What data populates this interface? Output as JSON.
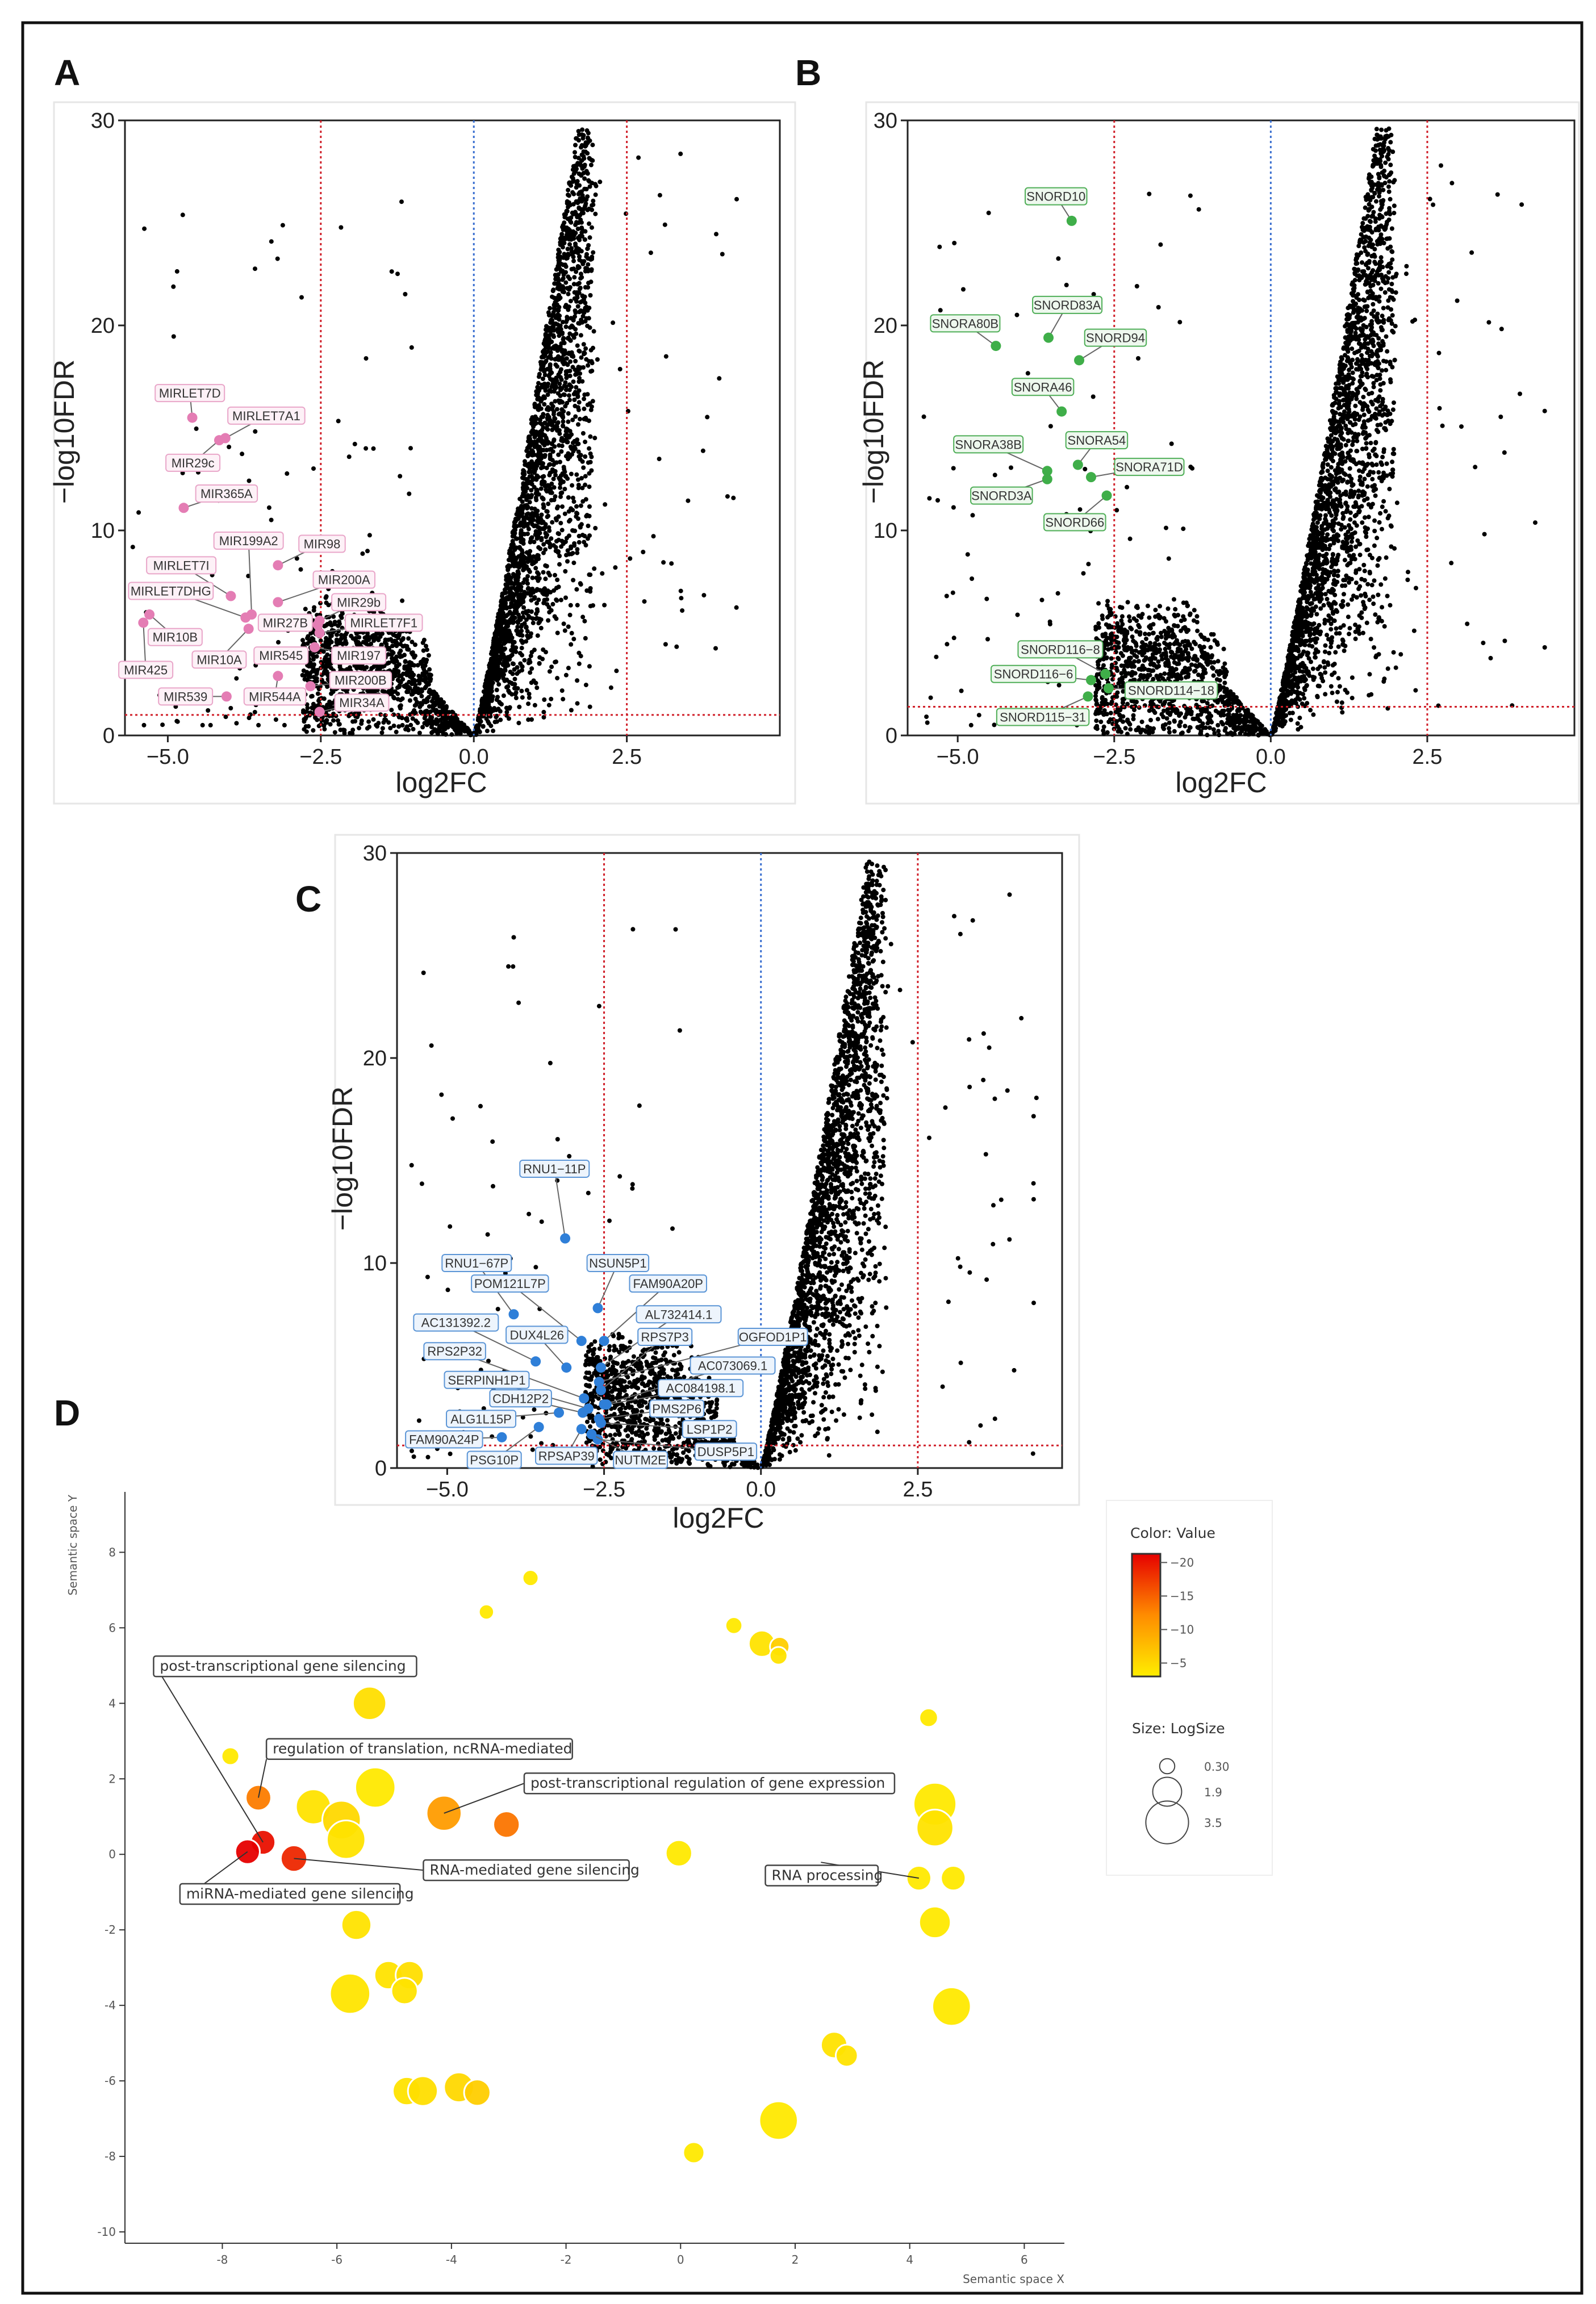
{
  "panel_letters": [
    "A",
    "B",
    "C",
    "D"
  ],
  "chart_data": [
    {
      "panel": "A",
      "type": "scatter",
      "subtype": "volcano",
      "xlabel": "log2FC",
      "ylabel": "−log10FDR",
      "xlim": [
        -5.7,
        5.0
      ],
      "ylim": [
        0,
        30
      ],
      "x_ticks": [
        -5,
        -2.5,
        0,
        2.5
      ],
      "x_tick_labels": [
        "−5.0",
        "−2.5",
        "0.0",
        "2.5"
      ],
      "y_ticks": [
        0,
        10,
        20,
        30
      ],
      "y_tick_labels": [
        "0",
        "10",
        "20",
        "30"
      ],
      "thresholds": {
        "log2fc": [
          -2.5,
          2.5
        ],
        "center": 0,
        "neg_log10_fdr": 1.0
      },
      "highlight_color": "#e47db4",
      "label_border": "#e9a6c9",
      "label_fill": "#fdf1f7",
      "highlighted": [
        {
          "label": "MIRLET7D",
          "x": -4.6,
          "y": 15.5
        },
        {
          "label": "MIRLET7A1",
          "x": -4.06,
          "y": 14.5
        },
        {
          "label": "MIR29c",
          "x": -4.16,
          "y": 14.4
        },
        {
          "label": "MIR365A",
          "x": -4.74,
          "y": 11.1
        },
        {
          "label": "MIR199A2",
          "x": -3.63,
          "y": 5.9
        },
        {
          "label": "MIR98",
          "x": -3.2,
          "y": 8.3
        },
        {
          "label": "MIRLET7I",
          "x": -3.97,
          "y": 6.8
        },
        {
          "label": "MIRLET7DHG",
          "x": -3.73,
          "y": 5.75
        },
        {
          "label": "MIR200A",
          "x": -3.2,
          "y": 6.5
        },
        {
          "label": "MIR29b",
          "x": -2.52,
          "y": 5.6
        },
        {
          "label": "MIR27B",
          "x": -2.55,
          "y": 5.4
        },
        {
          "label": "MIRLET7F1",
          "x": -2.52,
          "y": 5.0
        },
        {
          "label": "MIR10B",
          "x": -5.3,
          "y": 5.9
        },
        {
          "label": "MIR10A",
          "x": -3.68,
          "y": 5.2
        },
        {
          "label": "MIR545",
          "x": -2.98,
          "y": 4.0
        },
        {
          "label": "MIR197",
          "x": -2.6,
          "y": 4.3
        },
        {
          "label": "MIR425",
          "x": -5.4,
          "y": 5.5
        },
        {
          "label": "MIR200B",
          "x": -2.67,
          "y": 2.4
        },
        {
          "label": "MIR539",
          "x": -4.04,
          "y": 1.9
        },
        {
          "label": "MIR544A",
          "x": -3.2,
          "y": 2.9
        },
        {
          "label": "MIR34A",
          "x": -2.52,
          "y": 1.15
        }
      ]
    },
    {
      "panel": "B",
      "type": "scatter",
      "subtype": "volcano",
      "xlabel": "log2FC",
      "ylabel": "−log10FDR",
      "xlim": [
        -5.8,
        4.85
      ],
      "ylim": [
        0,
        30
      ],
      "x_ticks": [
        -5,
        -2.5,
        0,
        2.5
      ],
      "x_tick_labels": [
        "−5.0",
        "−2.5",
        "0.0",
        "2.5"
      ],
      "y_ticks": [
        0,
        10,
        20,
        30
      ],
      "y_tick_labels": [
        "0",
        "10",
        "20",
        "30"
      ],
      "thresholds": {
        "log2fc": [
          -2.5,
          2.5
        ],
        "center": 0,
        "neg_log10_fdr": 1.4
      },
      "highlight_color": "#3fae49",
      "label_border": "#4fae57",
      "label_fill": "#eef8ee",
      "highlighted": [
        {
          "label": "SNORD10",
          "x": -3.18,
          "y": 25.1
        },
        {
          "label": "SNORD83A",
          "x": -3.55,
          "y": 19.4
        },
        {
          "label": "SNORA80B",
          "x": -4.39,
          "y": 19.0
        },
        {
          "label": "SNORD94",
          "x": -3.06,
          "y": 18.3
        },
        {
          "label": "SNORA46",
          "x": -3.34,
          "y": 15.8
        },
        {
          "label": "SNORA38B",
          "x": -3.57,
          "y": 12.9
        },
        {
          "label": "SNORA54",
          "x": -3.08,
          "y": 13.2
        },
        {
          "label": "SNORA71D",
          "x": -2.87,
          "y": 12.6
        },
        {
          "label": "SNORD3A",
          "x": -3.57,
          "y": 12.5
        },
        {
          "label": "SNORD66",
          "x": -2.62,
          "y": 11.7
        },
        {
          "label": "SNORD116−8",
          "x": -2.64,
          "y": 3.0
        },
        {
          "label": "SNORD116−6",
          "x": -2.87,
          "y": 2.7
        },
        {
          "label": "SNORD114−18",
          "x": -2.59,
          "y": 2.3
        },
        {
          "label": "SNORD115−31",
          "x": -2.92,
          "y": 1.9
        }
      ]
    },
    {
      "panel": "C",
      "type": "scatter",
      "subtype": "volcano",
      "xlabel": "log2FC",
      "ylabel": "−log10FDR",
      "xlim": [
        -5.8,
        4.8
      ],
      "ylim": [
        0,
        30
      ],
      "x_ticks": [
        -5,
        -2.5,
        0,
        2.5
      ],
      "x_tick_labels": [
        "−5.0",
        "−2.5",
        "0.0",
        "2.5"
      ],
      "y_ticks": [
        0,
        10,
        20,
        30
      ],
      "y_tick_labels": [
        "0",
        "10",
        "20",
        "30"
      ],
      "thresholds": {
        "log2fc": [
          -2.5,
          2.5
        ],
        "center": 0,
        "neg_log10_fdr": 1.1
      },
      "highlight_color": "#2f7fd8",
      "label_border": "#5b95d6",
      "label_fill": "#edf4fc",
      "highlighted": [
        {
          "label": "RNU1−11P",
          "x": -3.12,
          "y": 11.2
        },
        {
          "label": "RNU1−67P",
          "x": -3.94,
          "y": 7.5
        },
        {
          "label": "NSUN5P1",
          "x": -2.6,
          "y": 7.8
        },
        {
          "label": "POM121L7P",
          "x": -2.86,
          "y": 6.2
        },
        {
          "label": "FAM90A20P",
          "x": -2.5,
          "y": 6.2
        },
        {
          "label": "AL732414.1",
          "x": -2.55,
          "y": 4.9
        },
        {
          "label": "RPS7P3",
          "x": -2.55,
          "y": 3.8
        },
        {
          "label": "OGFOD1P1",
          "x": -2.58,
          "y": 4.2
        },
        {
          "label": "AC131392.2",
          "x": -3.59,
          "y": 5.2
        },
        {
          "label": "DUX4L26",
          "x": -3.1,
          "y": 4.9
        },
        {
          "label": "RPS2P32",
          "x": -2.82,
          "y": 3.4
        },
        {
          "label": "AC073069.1",
          "x": -2.5,
          "y": 3.1
        },
        {
          "label": "SERPINH1P1",
          "x": -2.75,
          "y": 2.9
        },
        {
          "label": "AC084198.1",
          "x": -2.46,
          "y": 3.1
        },
        {
          "label": "CDH12P2",
          "x": -2.84,
          "y": 2.7
        },
        {
          "label": "PMS2P6",
          "x": -2.58,
          "y": 2.4
        },
        {
          "label": "ALG1L15P",
          "x": -3.22,
          "y": 2.7
        },
        {
          "label": "LSP1P2",
          "x": -2.55,
          "y": 2.2
        },
        {
          "label": "FAM90A24P",
          "x": -4.13,
          "y": 1.5
        },
        {
          "label": "DUSP5P1",
          "x": -2.6,
          "y": 1.4
        },
        {
          "label": "PSG10P",
          "x": -3.54,
          "y": 2.0
        },
        {
          "label": "RPSAP39",
          "x": -2.86,
          "y": 1.9
        },
        {
          "label": "NUTM2E",
          "x": -2.7,
          "y": 1.65
        }
      ]
    },
    {
      "panel": "D",
      "type": "scatter",
      "subtype": "bubble",
      "xlabel": "Semantic space X",
      "ylabel": "Semantic space Y",
      "xlim": [
        -9.7,
        6.7
      ],
      "ylim": [
        -10.3,
        9.6
      ],
      "x_ticks": [
        -8,
        -6,
        -4,
        -2,
        0,
        2,
        4,
        6
      ],
      "x_tick_labels": [
        "-8",
        "-6",
        "-4",
        "-2",
        "0",
        "2",
        "4",
        "6"
      ],
      "y_ticks": [
        -10,
        -8,
        -6,
        -4,
        -2,
        0,
        2,
        4,
        6,
        8
      ],
      "y_tick_labels": [
        "-10",
        "-8",
        "-6",
        "-4",
        "-2",
        "0",
        "2",
        "4",
        "6",
        "8"
      ],
      "color_legend": {
        "title": "Color: Value",
        "ticks": [
          -20,
          -15,
          -10,
          -5
        ],
        "tick_labels": [
          "−20",
          "−15",
          "−10",
          "−5"
        ],
        "range": [
          -21.3,
          -3
        ]
      },
      "size_legend": {
        "title": "Size: LogSize",
        "values": [
          0.3,
          1.9,
          3.5
        ],
        "labels": [
          "0.30",
          "1.9",
          "3.5"
        ]
      },
      "annotations": [
        {
          "label": "post-transcriptional gene silencing",
          "point": 17
        },
        {
          "label": "regulation of translation, ncRNA-mediated",
          "point": 9
        },
        {
          "label": "post-transcriptional regulation of gene expression",
          "point": 15
        },
        {
          "label": "RNA-mediated gene silencing",
          "point": 19
        },
        {
          "label": "miRNA-mediated gene silencing",
          "point": 18
        },
        {
          "label": "RNA processing",
          "point": 22
        }
      ],
      "points": [
        {
          "x": -2.62,
          "y": 7.32,
          "size": 0.4,
          "value": -3.5
        },
        {
          "x": -3.39,
          "y": 6.42,
          "size": 0.3,
          "value": -3.5
        },
        {
          "x": 0.93,
          "y": 6.06,
          "size": 0.5,
          "value": -3.5
        },
        {
          "x": 1.42,
          "y": 5.58,
          "size": 1.6,
          "value": -4
        },
        {
          "x": 1.73,
          "y": 5.5,
          "size": 0.8,
          "value": -6
        },
        {
          "x": 1.71,
          "y": 5.26,
          "size": 0.6,
          "value": -4
        },
        {
          "x": -5.43,
          "y": 4.0,
          "size": 2.4,
          "value": -4.5
        },
        {
          "x": 4.33,
          "y": 3.62,
          "size": 0.7,
          "value": -3.5
        },
        {
          "x": -7.86,
          "y": 2.6,
          "size": 0.6,
          "value": -3.5
        },
        {
          "x": -7.37,
          "y": 1.5,
          "size": 1.5,
          "value": -13
        },
        {
          "x": -6.41,
          "y": 1.26,
          "size": 2.6,
          "value": -4
        },
        {
          "x": -5.33,
          "y": 1.77,
          "size": 3.2,
          "value": -3.5
        },
        {
          "x": -5.92,
          "y": 0.91,
          "size": 3.0,
          "value": -5
        },
        {
          "x": -5.84,
          "y": 0.39,
          "size": 3.0,
          "value": -4
        },
        {
          "x": -0.03,
          "y": 0.03,
          "size": 1.6,
          "value": -3.5
        },
        {
          "x": -4.13,
          "y": 1.09,
          "size": 2.6,
          "value": -10.5
        },
        {
          "x": -3.04,
          "y": 0.79,
          "size": 1.6,
          "value": -13.5
        },
        {
          "x": -7.29,
          "y": 0.32,
          "size": 1.4,
          "value": -20
        },
        {
          "x": -7.56,
          "y": 0.07,
          "size": 1.4,
          "value": -21
        },
        {
          "x": -6.75,
          "y": -0.11,
          "size": 1.6,
          "value": -18.5
        },
        {
          "x": 4.44,
          "y": 1.33,
          "size": 3.5,
          "value": -3.5
        },
        {
          "x": 4.44,
          "y": 0.7,
          "size": 2.8,
          "value": -4
        },
        {
          "x": 4.16,
          "y": -0.63,
          "size": 1.4,
          "value": -3.5
        },
        {
          "x": 4.76,
          "y": -0.63,
          "size": 1.4,
          "value": -3.5
        },
        {
          "x": 4.44,
          "y": -1.8,
          "size": 2.2,
          "value": -3.5
        },
        {
          "x": -5.66,
          "y": -1.87,
          "size": 2.0,
          "value": -4
        },
        {
          "x": -5.77,
          "y": -3.69,
          "size": 3.2,
          "value": -3.8
        },
        {
          "x": -5.1,
          "y": -3.2,
          "size": 1.8,
          "value": -4
        },
        {
          "x": -4.73,
          "y": -3.2,
          "size": 1.8,
          "value": -4.5
        },
        {
          "x": -4.82,
          "y": -3.62,
          "size": 1.6,
          "value": -4
        },
        {
          "x": 4.73,
          "y": -4.03,
          "size": 3.0,
          "value": -3.5
        },
        {
          "x": 2.68,
          "y": -5.05,
          "size": 1.6,
          "value": -4
        },
        {
          "x": 2.9,
          "y": -5.33,
          "size": 1.1,
          "value": -4
        },
        {
          "x": -4.78,
          "y": -6.27,
          "size": 1.8,
          "value": -4
        },
        {
          "x": -4.5,
          "y": -6.27,
          "size": 2.0,
          "value": -4.5
        },
        {
          "x": -3.87,
          "y": -6.17,
          "size": 2.0,
          "value": -5
        },
        {
          "x": -3.55,
          "y": -6.31,
          "size": 1.6,
          "value": -6
        },
        {
          "x": 1.71,
          "y": -7.05,
          "size": 3.0,
          "value": -3.5
        },
        {
          "x": 0.23,
          "y": -7.9,
          "size": 1.0,
          "value": -3.5
        }
      ]
    }
  ]
}
